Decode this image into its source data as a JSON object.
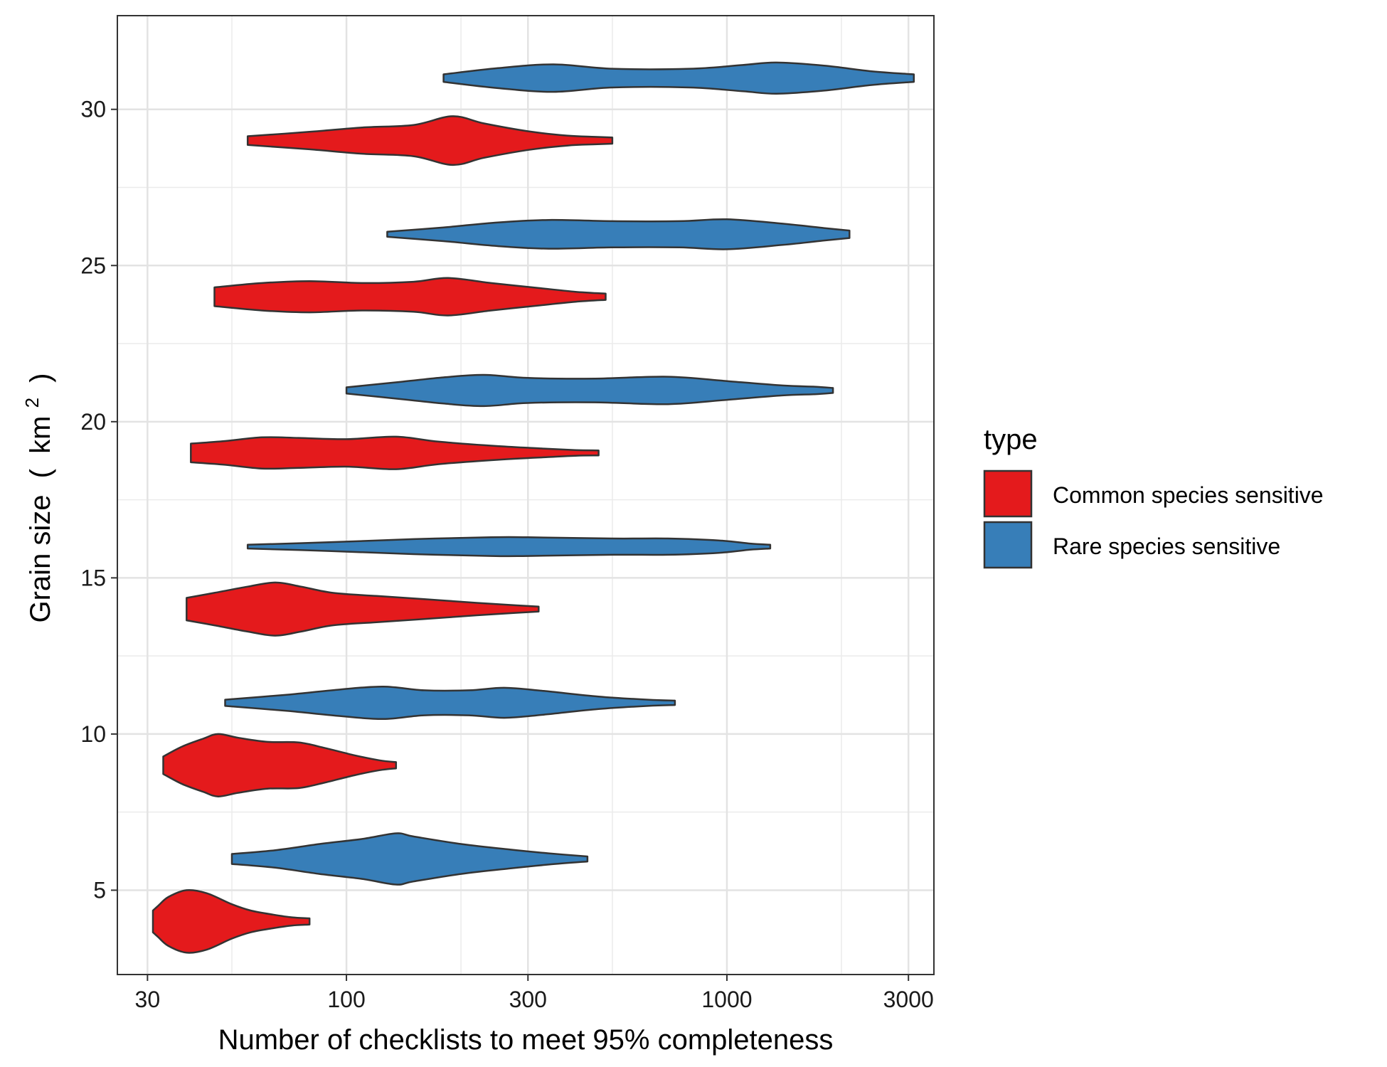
{
  "chart_data": {
    "type": "violin",
    "xlabel": "Number of checklists to meet 95% completeness",
    "ylabel_text": "Grain size",
    "ylabel_unit_open": "(",
    "ylabel_unit_base": "km",
    "ylabel_unit_sup": "2",
    "ylabel_unit_close": ")",
    "x_scale": "log10",
    "xlim": [
      25,
      3500
    ],
    "ylim": [
      2.3,
      33
    ],
    "x_ticks": [
      30,
      100,
      300,
      1000,
      3000
    ],
    "x_tick_labels": [
      "30",
      "100",
      "300",
      "1000",
      "3000"
    ],
    "x_minor_gridlines": [
      50,
      200,
      500,
      2000
    ],
    "y_ticks": [
      5,
      10,
      15,
      20,
      25,
      30
    ],
    "y_tick_labels": [
      "5",
      "10",
      "15",
      "20",
      "25",
      "30"
    ],
    "grid": true,
    "legend": {
      "title": "type",
      "position": "right",
      "entries": [
        {
          "label": "Common species sensitive",
          "color": "#E41A1C"
        },
        {
          "label": "Rare species sensitive",
          "color": "#377EB8"
        }
      ]
    },
    "violins": [
      {
        "grain": 4,
        "type": "Common species sensitive",
        "min": 31,
        "max": 80,
        "profile": [
          [
            31,
            0.35
          ],
          [
            32,
            0.5
          ],
          [
            34,
            0.78
          ],
          [
            38,
            1.0
          ],
          [
            43,
            0.9
          ],
          [
            50,
            0.55
          ],
          [
            56,
            0.35
          ],
          [
            64,
            0.22
          ],
          [
            72,
            0.13
          ],
          [
            80,
            0.1
          ]
        ]
      },
      {
        "grain": 6,
        "type": "Rare species sensitive",
        "min": 50,
        "max": 430,
        "profile": [
          [
            50,
            0.16
          ],
          [
            65,
            0.28
          ],
          [
            85,
            0.48
          ],
          [
            110,
            0.64
          ],
          [
            135,
            0.82
          ],
          [
            150,
            0.72
          ],
          [
            200,
            0.48
          ],
          [
            270,
            0.3
          ],
          [
            340,
            0.18
          ],
          [
            430,
            0.08
          ]
        ]
      },
      {
        "grain": 9,
        "type": "Common species sensitive",
        "min": 33,
        "max": 135,
        "profile": [
          [
            33,
            0.28
          ],
          [
            37,
            0.6
          ],
          [
            42,
            0.85
          ],
          [
            46,
            1.0
          ],
          [
            52,
            0.88
          ],
          [
            62,
            0.75
          ],
          [
            75,
            0.73
          ],
          [
            88,
            0.55
          ],
          [
            105,
            0.32
          ],
          [
            122,
            0.16
          ],
          [
            135,
            0.1
          ]
        ]
      },
      {
        "grain": 11,
        "type": "Rare species sensitive",
        "min": 48,
        "max": 730,
        "profile": [
          [
            48,
            0.1
          ],
          [
            70,
            0.26
          ],
          [
            95,
            0.42
          ],
          [
            125,
            0.52
          ],
          [
            160,
            0.4
          ],
          [
            210,
            0.4
          ],
          [
            260,
            0.48
          ],
          [
            330,
            0.38
          ],
          [
            460,
            0.2
          ],
          [
            620,
            0.1
          ],
          [
            730,
            0.07
          ]
        ]
      },
      {
        "grain": 14,
        "type": "Common species sensitive",
        "min": 38,
        "max": 320,
        "profile": [
          [
            38,
            0.36
          ],
          [
            45,
            0.52
          ],
          [
            55,
            0.72
          ],
          [
            65,
            0.85
          ],
          [
            76,
            0.72
          ],
          [
            92,
            0.52
          ],
          [
            120,
            0.42
          ],
          [
            160,
            0.32
          ],
          [
            220,
            0.2
          ],
          [
            280,
            0.12
          ],
          [
            320,
            0.08
          ]
        ]
      },
      {
        "grain": 16,
        "type": "Rare species sensitive",
        "min": 55,
        "max": 1300,
        "profile": [
          [
            55,
            0.06
          ],
          [
            90,
            0.14
          ],
          [
            150,
            0.24
          ],
          [
            240,
            0.3
          ],
          [
            300,
            0.3
          ],
          [
            500,
            0.26
          ],
          [
            700,
            0.26
          ],
          [
            950,
            0.2
          ],
          [
            1150,
            0.1
          ],
          [
            1300,
            0.06
          ]
        ]
      },
      {
        "grain": 19,
        "type": "Common species sensitive",
        "min": 39,
        "max": 460,
        "profile": [
          [
            39,
            0.3
          ],
          [
            48,
            0.38
          ],
          [
            60,
            0.5
          ],
          [
            75,
            0.48
          ],
          [
            100,
            0.44
          ],
          [
            135,
            0.52
          ],
          [
            175,
            0.36
          ],
          [
            250,
            0.22
          ],
          [
            330,
            0.14
          ],
          [
            400,
            0.09
          ],
          [
            460,
            0.08
          ]
        ]
      },
      {
        "grain": 21,
        "type": "Rare species sensitive",
        "min": 100,
        "max": 1900,
        "profile": [
          [
            100,
            0.1
          ],
          [
            140,
            0.28
          ],
          [
            180,
            0.42
          ],
          [
            230,
            0.5
          ],
          [
            300,
            0.4
          ],
          [
            450,
            0.38
          ],
          [
            700,
            0.44
          ],
          [
            1000,
            0.3
          ],
          [
            1400,
            0.16
          ],
          [
            1700,
            0.12
          ],
          [
            1900,
            0.08
          ]
        ]
      },
      {
        "grain": 24,
        "type": "Common species sensitive",
        "min": 45,
        "max": 480,
        "profile": [
          [
            45,
            0.3
          ],
          [
            60,
            0.44
          ],
          [
            80,
            0.5
          ],
          [
            110,
            0.44
          ],
          [
            150,
            0.48
          ],
          [
            185,
            0.6
          ],
          [
            240,
            0.44
          ],
          [
            320,
            0.28
          ],
          [
            400,
            0.16
          ],
          [
            480,
            0.1
          ]
        ]
      },
      {
        "grain": 26,
        "type": "Rare species sensitive",
        "min": 128,
        "max": 2100,
        "profile": [
          [
            128,
            0.08
          ],
          [
            180,
            0.22
          ],
          [
            250,
            0.38
          ],
          [
            340,
            0.46
          ],
          [
            500,
            0.42
          ],
          [
            750,
            0.42
          ],
          [
            1000,
            0.48
          ],
          [
            1400,
            0.34
          ],
          [
            1800,
            0.2
          ],
          [
            2100,
            0.12
          ]
        ]
      },
      {
        "grain": 29,
        "type": "Common species sensitive",
        "min": 55,
        "max": 500,
        "profile": [
          [
            55,
            0.14
          ],
          [
            80,
            0.28
          ],
          [
            110,
            0.42
          ],
          [
            150,
            0.5
          ],
          [
            190,
            0.78
          ],
          [
            230,
            0.55
          ],
          [
            300,
            0.3
          ],
          [
            380,
            0.16
          ],
          [
            450,
            0.12
          ],
          [
            500,
            0.1
          ]
        ]
      },
      {
        "grain": 31,
        "type": "Rare species sensitive",
        "min": 180,
        "max": 3100,
        "profile": [
          [
            180,
            0.12
          ],
          [
            250,
            0.32
          ],
          [
            350,
            0.44
          ],
          [
            500,
            0.3
          ],
          [
            800,
            0.3
          ],
          [
            1100,
            0.42
          ],
          [
            1350,
            0.5
          ],
          [
            1800,
            0.4
          ],
          [
            2400,
            0.22
          ],
          [
            3100,
            0.12
          ]
        ]
      }
    ]
  }
}
